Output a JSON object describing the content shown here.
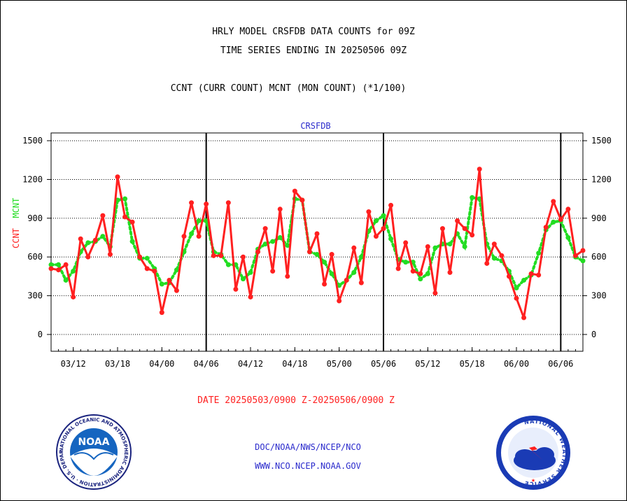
{
  "header": {
    "line1": "HRLY MODEL CRSFDB DATA COUNTS for 09Z",
    "line2": "TIME SERIES ENDING IN 20250506 09Z",
    "line3": "CCNT (CURR COUNT) MCNT (MON COUNT) (*1/100)"
  },
  "y_axis_label": {
    "ccnt": "CCNT",
    "mcnt": "MCNT"
  },
  "date_range": "DATE 20250503/0900 Z-20250506/0900 Z",
  "credits": {
    "line1": "DOC/NOAA/NWS/NCEP/NCO",
    "line2": "WWW.NCO.NCEP.NOAA.GOV"
  },
  "logos": {
    "noaa": {
      "text": "NOAA",
      "ring_text": "NATIONAL OCEANIC AND ATMOSPHERIC ADMINISTRATION · U.S. DEPARTMENT OF COMMERCE"
    },
    "nws": {
      "ring_text": "NATIONAL WEATHER SERVICE"
    }
  },
  "colors": {
    "ccnt": "#ff2020",
    "mcnt": "#22dd22",
    "frame_label": "#2a2acc"
  },
  "chart_data": {
    "type": "line",
    "title": "CRSFDB",
    "ylim": [
      -130,
      1560
    ],
    "yticks": [
      0,
      300,
      600,
      900,
      1200,
      1500
    ],
    "xlim": [
      0,
      72
    ],
    "xtick_labels": [
      "03/12",
      "03/18",
      "04/00",
      "04/06",
      "04/12",
      "04/18",
      "05/00",
      "05/06",
      "05/12",
      "05/18",
      "06/00",
      "06/06"
    ],
    "xtick_positions": [
      3,
      9,
      15,
      21,
      27,
      33,
      39,
      45,
      51,
      57,
      63,
      69
    ],
    "day_boundaries": [
      21,
      45,
      69
    ],
    "grid": true,
    "series": [
      {
        "name": "CCNT",
        "x": [
          0,
          1,
          2,
          3,
          4,
          5,
          6,
          7,
          8,
          9,
          10,
          11,
          12,
          13,
          14,
          15,
          16,
          17,
          18,
          19,
          20,
          21,
          22,
          23,
          24,
          25,
          26,
          27,
          28,
          29,
          30,
          31,
          32,
          33,
          34,
          35,
          36,
          37,
          38,
          39,
          40,
          41,
          42,
          43,
          44,
          45,
          46,
          47,
          48,
          49,
          50,
          51,
          52,
          53,
          54,
          55,
          56,
          57,
          58,
          59,
          60,
          61,
          62,
          63,
          64,
          65,
          66,
          67,
          68,
          69,
          70,
          71,
          72
        ],
        "values": [
          510,
          500,
          540,
          290,
          740,
          600,
          730,
          920,
          620,
          1220,
          910,
          870,
          600,
          510,
          490,
          170,
          420,
          340,
          760,
          1020,
          760,
          1010,
          610,
          610,
          1020,
          350,
          600,
          290,
          640,
          820,
          490,
          970,
          450,
          1110,
          1040,
          640,
          780,
          390,
          620,
          260,
          420,
          670,
          400,
          950,
          760,
          820,
          1000,
          510,
          710,
          490,
          470,
          680,
          320,
          820,
          480,
          880,
          820,
          770,
          1280,
          550,
          700,
          610,
          450,
          280,
          130,
          470,
          460,
          830,
          1030,
          890,
          970,
          610,
          650
        ]
      },
      {
        "name": "MCNT",
        "x": [
          0,
          1,
          2,
          3,
          4,
          5,
          6,
          7,
          8,
          9,
          10,
          11,
          12,
          13,
          14,
          15,
          16,
          17,
          18,
          19,
          20,
          21,
          22,
          23,
          24,
          25,
          26,
          27,
          28,
          29,
          30,
          31,
          32,
          33,
          34,
          35,
          36,
          37,
          38,
          39,
          40,
          41,
          42,
          43,
          44,
          45,
          46,
          47,
          48,
          49,
          50,
          51,
          52,
          53,
          54,
          55,
          56,
          57,
          58,
          59,
          60,
          61,
          62,
          63,
          64,
          65,
          66,
          67,
          68,
          69,
          70,
          71,
          72
        ],
        "values": [
          540,
          540,
          420,
          490,
          640,
          710,
          720,
          760,
          680,
          1040,
          1050,
          720,
          590,
          590,
          510,
          390,
          400,
          500,
          640,
          780,
          880,
          880,
          640,
          620,
          540,
          540,
          430,
          480,
          660,
          700,
          720,
          750,
          690,
          1050,
          1040,
          640,
          620,
          560,
          470,
          380,
          420,
          480,
          600,
          800,
          880,
          920,
          740,
          580,
          560,
          560,
          430,
          470,
          670,
          700,
          700,
          780,
          680,
          1060,
          1050,
          700,
          590,
          570,
          490,
          360,
          420,
          460,
          630,
          810,
          870,
          880,
          750,
          600,
          570
        ]
      }
    ]
  }
}
